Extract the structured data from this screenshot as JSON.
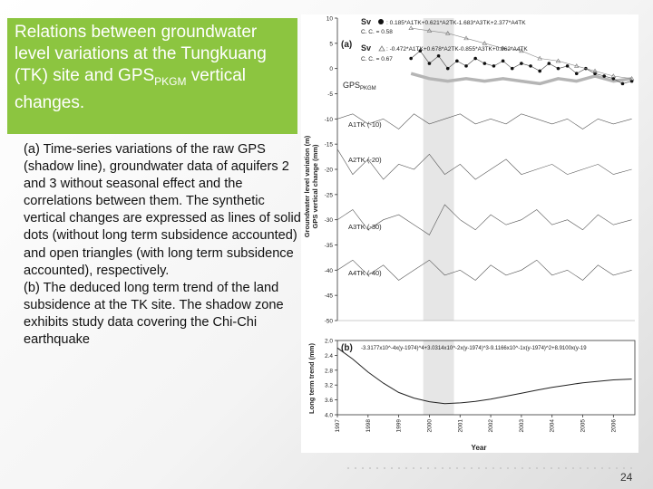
{
  "slide": {
    "title_main": "Relations between groundwater level variations at the Tungkuang (TK) site and GPS",
    "title_sub": "PKGM",
    "title_end": " vertical changes.",
    "body_a": "(a) Time-series variations of the raw GPS (shadow line), groundwater data of aquifers 2 and 3 without seasonal effect and the correlations between them. The synthetic vertical changes are expressed as lines of solid dots (without long term subsidence accounted) and open triangles (with long term subsidence accounted), respectively.",
    "body_b": "(b) The deduced long term trend of the land subsidence at the TK site. The shadow zone exhibits study data covering the Chi-Chi earthquake",
    "page_number": "24"
  },
  "figure": {
    "panel_a_label": "(a)",
    "panel_b_label": "(b)",
    "eq1_prefix": "Sv",
    "eq1": ": 0.185*A1TK+0.621*A2TK-1.683*A3TK+2.377*A4TK",
    "cc1": "C. C. = 0.58",
    "eq2_prefix": "Sv",
    "eq2": ": -0.472*A1TK+0.678*A2TK-0.855*A3TK+0.962*A4TK",
    "cc2": "C. C. = 0.67",
    "gps_label": "GPS",
    "gps_sub": "PKGM",
    "series_labels": [
      "A1TK (-10)",
      "A2TK (-20)",
      "A3TK (-30)",
      "A4TK (-40)"
    ],
    "ylabel_a_1": "Groundwater level variation (m)",
    "ylabel_a_2": "GPS vertical change (mm)",
    "ylabel_b": "Long term trend (mm)",
    "eq_b": "-3.3177x10^-4x(y-1974)^4+3.0314x10^-2x(y-1974)^3-9.1166x10^-1x(y-1974)^2+8.9100x(y-19",
    "xlabel": "Year"
  },
  "chart_data": [
    {
      "type": "line",
      "title": "",
      "xlabel": "",
      "ylabel": "Groundwater level variation (m) / GPS vertical change (mm)",
      "xlim": [
        1997,
        2006.7
      ],
      "ylim": [
        -50,
        10
      ],
      "yticks": [
        10,
        5,
        0,
        -5,
        -10,
        -15,
        -20,
        -25,
        -30,
        -35,
        -40,
        -45,
        -50
      ],
      "shaded_x": [
        1999.8,
        2000.8
      ],
      "series": [
        {
          "name": "GPS",
          "style": "shadow",
          "x": [
            1999.4,
            2000.0,
            2000.6,
            2001.2,
            2001.8,
            2002.4,
            2003.0,
            2003.6,
            2004.2,
            2004.8,
            2005.4,
            2006.0,
            2006.6
          ],
          "y": [
            -1.0,
            -2.0,
            -2.5,
            -2.0,
            -2.5,
            -2.0,
            -2.5,
            -3.0,
            -2.0,
            -2.5,
            -1.5,
            -2.5,
            -2.0
          ]
        },
        {
          "name": "Sv",
          "style": "dots",
          "x": [
            1999.4,
            1999.7,
            2000.0,
            2000.3,
            2000.6,
            2000.9,
            2001.2,
            2001.5,
            2001.8,
            2002.1,
            2002.4,
            2002.7,
            2003.0,
            2003.3,
            2003.6,
            2003.9,
            2004.2,
            2004.5,
            2004.8,
            2005.1,
            2005.4,
            2005.7,
            2006.0,
            2006.3,
            2006.6
          ],
          "y": [
            2.0,
            3.5,
            1.0,
            2.5,
            0.0,
            1.5,
            0.5,
            2.0,
            1.0,
            0.5,
            1.5,
            0.0,
            1.0,
            0.5,
            -0.5,
            1.0,
            0.0,
            0.5,
            -1.0,
            0.0,
            -1.0,
            -1.5,
            -2.0,
            -3.0,
            -2.5
          ]
        },
        {
          "name": "Sv triangles",
          "style": "triangles",
          "x": [
            1999.4,
            2000.0,
            2000.6,
            2001.2,
            2001.8,
            2002.4,
            2003.0,
            2003.6,
            2004.2,
            2004.8,
            2005.4,
            2006.0,
            2006.6
          ],
          "y": [
            8.0,
            7.5,
            7.0,
            6.0,
            5.0,
            4.0,
            3.5,
            2.0,
            1.5,
            0.5,
            -0.5,
            -1.5,
            -2.0
          ]
        },
        {
          "name": "A1TK (-10)",
          "style": "line",
          "x": [
            1997.0,
            1997.5,
            1998.0,
            1998.5,
            1999.0,
            1999.5,
            2000.0,
            2000.5,
            2001.0,
            2001.5,
            2002.0,
            2002.5,
            2003.0,
            2003.5,
            2004.0,
            2004.5,
            2005.0,
            2005.5,
            2006.0,
            2006.6
          ],
          "y": [
            -10,
            -9,
            -11,
            -10,
            -12,
            -9,
            -11,
            -10,
            -9,
            -11,
            -10,
            -11,
            -9,
            -10,
            -11,
            -10,
            -12,
            -10,
            -11,
            -10
          ]
        },
        {
          "name": "A2TK (-20)",
          "style": "line",
          "x": [
            1997.0,
            1997.5,
            1998.0,
            1998.5,
            1999.0,
            1999.5,
            2000.0,
            2000.5,
            2001.0,
            2001.5,
            2002.0,
            2002.5,
            2003.0,
            2003.5,
            2004.0,
            2004.5,
            2005.0,
            2005.5,
            2006.0,
            2006.6
          ],
          "y": [
            -16,
            -21,
            -18,
            -22,
            -19,
            -20,
            -17,
            -21,
            -19,
            -22,
            -20,
            -18,
            -21,
            -20,
            -19,
            -21,
            -20,
            -19,
            -21,
            -20
          ]
        },
        {
          "name": "A3TK (-30)",
          "style": "line",
          "x": [
            1997.0,
            1997.5,
            1998.0,
            1998.5,
            1999.0,
            1999.5,
            2000.0,
            2000.5,
            2001.0,
            2001.5,
            2002.0,
            2002.5,
            2003.0,
            2003.5,
            2004.0,
            2004.5,
            2005.0,
            2005.5,
            2006.0,
            2006.6
          ],
          "y": [
            -30,
            -28,
            -32,
            -30,
            -29,
            -31,
            -33,
            -27,
            -30,
            -32,
            -29,
            -31,
            -30,
            -28,
            -31,
            -30,
            -32,
            -29,
            -31,
            -30
          ]
        },
        {
          "name": "A4TK (-40)",
          "style": "line",
          "x": [
            1997.0,
            1997.5,
            1998.0,
            1998.5,
            1999.0,
            1999.5,
            2000.0,
            2000.5,
            2001.0,
            2001.5,
            2002.0,
            2002.5,
            2003.0,
            2003.5,
            2004.0,
            2004.5,
            2005.0,
            2005.5,
            2006.0,
            2006.6
          ],
          "y": [
            -40,
            -38,
            -41,
            -39,
            -42,
            -40,
            -38,
            -41,
            -40,
            -42,
            -39,
            -41,
            -40,
            -38,
            -41,
            -40,
            -42,
            -39,
            -41,
            -40
          ]
        }
      ]
    },
    {
      "type": "line",
      "title": "",
      "xlabel": "Year",
      "ylabel": "Long term trend (mm)",
      "xlim": [
        1997,
        2006.7
      ],
      "ylim": [
        4.0,
        2.0
      ],
      "yticks": [
        2.0,
        2.4,
        2.8,
        3.2,
        3.6,
        4.0
      ],
      "xticks": [
        1997,
        1998,
        1999,
        2000,
        2001,
        2002,
        2003,
        2004,
        2005,
        2006
      ],
      "shaded_x": [
        1999.8,
        2000.8
      ],
      "series": [
        {
          "name": "trend",
          "x": [
            1997.0,
            1997.5,
            1998.0,
            1998.5,
            1999.0,
            1999.5,
            2000.0,
            2000.5,
            2001.0,
            2001.5,
            2002.0,
            2002.5,
            2003.0,
            2003.5,
            2004.0,
            2004.5,
            2005.0,
            2005.5,
            2006.0,
            2006.6
          ],
          "y": [
            2.2,
            2.5,
            2.85,
            3.15,
            3.4,
            3.55,
            3.65,
            3.7,
            3.68,
            3.64,
            3.58,
            3.5,
            3.42,
            3.34,
            3.26,
            3.2,
            3.14,
            3.1,
            3.06,
            3.04
          ]
        }
      ]
    }
  ]
}
